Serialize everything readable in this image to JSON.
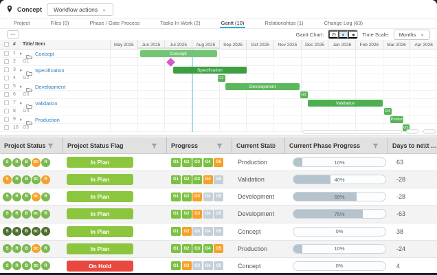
{
  "toolbar": {
    "context_label": "Concept",
    "workflow_actions_label": "Workflow actions"
  },
  "icons": {
    "chevron_down": "⌄",
    "more": "⋯",
    "view_target": "⊙",
    "view_half": "◐",
    "view_filled": "●",
    "expand_arrow": "▸"
  },
  "tabs": [
    {
      "label": "Project",
      "active": false
    },
    {
      "label": "Files (0)",
      "active": false
    },
    {
      "label": "Phase / Gate Process",
      "active": false
    },
    {
      "label": "Tasks In Work (2)",
      "active": false
    },
    {
      "label": "Gantt (10)",
      "active": true
    },
    {
      "label": "Relationships (1)",
      "active": false
    },
    {
      "label": "Change Log (63)",
      "active": false
    }
  ],
  "gantt_controls": {
    "chart_label": "Gantt Chart:",
    "view_modes": [
      {
        "name": "outline-dot-view",
        "selected": false
      },
      {
        "name": "half-circle-view",
        "selected": true
      },
      {
        "name": "filled-circle-view",
        "selected": false
      }
    ],
    "time_scale_label": "Time Scale:",
    "time_scale_value": "Months"
  },
  "gantt": {
    "header": {
      "number": "#",
      "title": "Title/ Item"
    },
    "months": [
      "May 2025",
      "Jun 2025",
      "Jul 2025",
      "Aug 2025",
      "Sep 2025",
      "Oct 2025",
      "Nov 2025",
      "Dec 2025",
      "Jan 2026",
      "Feb 2026",
      "Mar 2026",
      "Apr 2026"
    ],
    "rows": [
      {
        "num": "1",
        "title": "Concept",
        "kind": "phase"
      },
      {
        "num": "2",
        "title": "G1",
        "kind": "gate"
      },
      {
        "num": "3",
        "title": "Specification",
        "kind": "phase"
      },
      {
        "num": "4",
        "title": "G2",
        "kind": "gate"
      },
      {
        "num": "5",
        "title": "Development",
        "kind": "phase"
      },
      {
        "num": "6",
        "title": "G3",
        "kind": "gate"
      },
      {
        "num": "7",
        "title": "Validation",
        "kind": "phase"
      },
      {
        "num": "8",
        "title": "G4",
        "kind": "gate"
      },
      {
        "num": "9",
        "title": "Production",
        "kind": "phase"
      },
      {
        "num": "10",
        "title": "G5",
        "kind": "gate"
      }
    ],
    "bars": [
      {
        "row": 0,
        "label": "Concept",
        "start": 1.1,
        "end": 3.93,
        "type": "bar",
        "color": "#74c476"
      },
      {
        "row": 1,
        "label": "G1",
        "at": 2.24,
        "type": "milestone",
        "color": "#d957c8"
      },
      {
        "row": 2,
        "label": "Specification",
        "start": 2.32,
        "end": 5.01,
        "type": "bar",
        "color": "#3d9e43"
      },
      {
        "row": 3,
        "label": "G2",
        "start": 3.96,
        "end": 4.24,
        "type": "gate",
        "color": "#55b555"
      },
      {
        "row": 4,
        "label": "Development",
        "start": 4.24,
        "end": 6.96,
        "type": "bar",
        "color": "#5cb85c"
      },
      {
        "row": 5,
        "label": "G3",
        "start": 6.99,
        "end": 7.27,
        "type": "gate",
        "color": "#55b555"
      },
      {
        "row": 6,
        "label": "Validation",
        "start": 7.27,
        "end": 10.01,
        "type": "bar",
        "color": "#4caf50"
      },
      {
        "row": 7,
        "label": "G4",
        "start": 10.06,
        "end": 10.34,
        "type": "gate",
        "color": "#55b555"
      },
      {
        "row": 8,
        "label": "Production",
        "start": 10.28,
        "end": 10.77,
        "type": "bar",
        "color": "#55b555"
      },
      {
        "row": 9,
        "label": "G5",
        "start": 10.74,
        "end": 10.98,
        "type": "gate",
        "color": "#55b555"
      }
    ],
    "today_month": 3.0,
    "header_highlight": {
      "start": 1.0,
      "end": 4.0
    }
  },
  "table": {
    "headers": [
      {
        "label": "Project Status"
      },
      {
        "label": "Project Status Flag"
      },
      {
        "label": "Progress"
      },
      {
        "label": "Current State"
      },
      {
        "label": "Current Phase Progress"
      },
      {
        "label": "Days to next …"
      }
    ],
    "circle_labels": [
      "S",
      "R",
      "B",
      "BC",
      "R"
    ],
    "gate_labels": [
      "G1",
      "G2",
      "G3",
      "G4",
      "G5"
    ],
    "rows": [
      {
        "circles": [
          "green",
          "green",
          "green",
          "orange",
          "green"
        ],
        "flag": "In Plan",
        "flag_state": "plan",
        "gates": [
          "done",
          "done",
          "done",
          "done",
          "active"
        ],
        "state": "Production",
        "progress_label": "10%",
        "progress_pct": 10,
        "days": "63"
      },
      {
        "circles": [
          "orange",
          "green",
          "green",
          "green",
          "orange"
        ],
        "flag": "In Plan",
        "flag_state": "plan",
        "gates": [
          "done",
          "done",
          "done",
          "active",
          "todo"
        ],
        "state": "Validation",
        "progress_label": "40%",
        "progress_pct": 40,
        "days": "-28"
      },
      {
        "circles": [
          "green",
          "green",
          "green",
          "orange",
          "green"
        ],
        "flag": "In Plan",
        "flag_state": "plan",
        "gates": [
          "done",
          "done",
          "active",
          "todo",
          "todo"
        ],
        "state": "Development",
        "progress_label": "69%",
        "progress_pct": 69,
        "days": "-28"
      },
      {
        "circles": [
          "green",
          "green",
          "green",
          "green",
          "green"
        ],
        "flag": "In Plan",
        "flag_state": "plan",
        "gates": [
          "done",
          "done",
          "active",
          "todo",
          "todo"
        ],
        "state": "Development",
        "progress_label": "75%",
        "progress_pct": 75,
        "days": "-63"
      },
      {
        "circles": [
          "dark",
          "dark",
          "dark",
          "dark",
          "dark"
        ],
        "flag": "In Plan",
        "flag_state": "plan",
        "gates": [
          "done",
          "active",
          "todo",
          "todo",
          "todo"
        ],
        "state": "Concept",
        "progress_label": "0%",
        "progress_pct": 0,
        "days": "38"
      },
      {
        "circles": [
          "green",
          "green",
          "green",
          "orange",
          "green"
        ],
        "flag": "In Plan",
        "flag_state": "plan",
        "gates": [
          "done",
          "done",
          "done",
          "done",
          "active"
        ],
        "state": "Production",
        "progress_label": "10%",
        "progress_pct": 10,
        "days": "-24"
      },
      {
        "circles": [
          "green",
          "green",
          "green",
          "green",
          "green"
        ],
        "flag": "On Hold",
        "flag_state": "hold",
        "gates": [
          "done",
          "active",
          "todo",
          "todo",
          "todo"
        ],
        "state": "Concept",
        "progress_label": "0%",
        "progress_pct": 0,
        "days": "4"
      }
    ]
  },
  "colors": {
    "status_green": "#7bb94e",
    "status_orange": "#f5a228",
    "status_dark_green": "#4e6e30",
    "flag_green": "#8cc63f",
    "flag_red": "#e8483f",
    "gate_done": "#7cc143",
    "gate_active": "#f7a128",
    "gate_todo": "#c5cfd7",
    "progress_fill": "#b4c3cc",
    "accent_blue": "#29abe2",
    "today_line": "#a5dcee",
    "milestone": "#d957c8"
  }
}
